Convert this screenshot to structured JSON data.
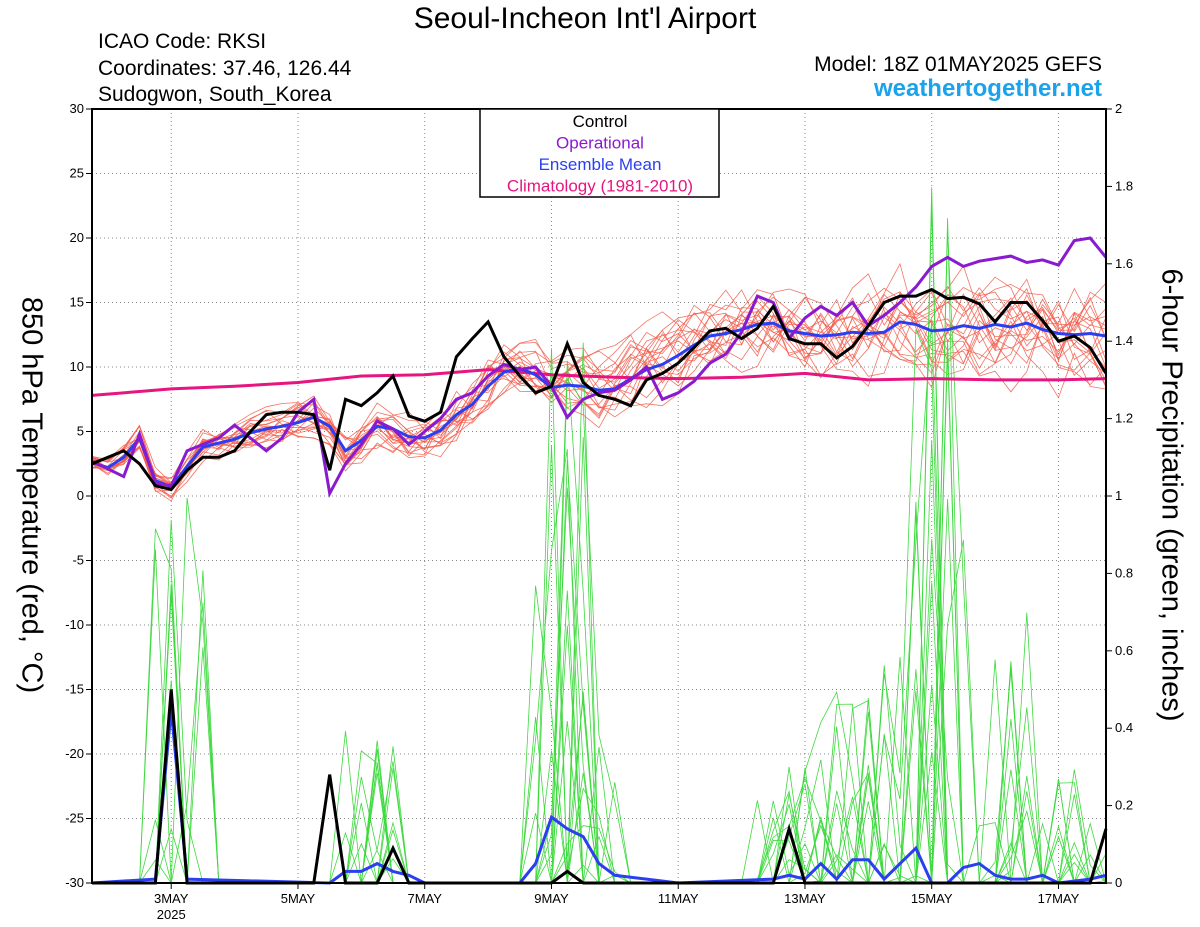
{
  "header": {
    "title": "Seoul-Incheon Int'l Airport",
    "icao": "ICAO Code: RKSI",
    "coords": "Coordinates: 37.46, 126.44",
    "region": "Sudogwon, South_Korea",
    "model": "Model: 18Z 01MAY2025 GEFS",
    "site": "weathertogether.net"
  },
  "colors": {
    "site": "#1aa3ea",
    "control": "#000000",
    "operational": "#8a1ad0",
    "mean": "#2b3ff0",
    "climatology": "#e6157f",
    "members_temp": "#f25a4a",
    "members_precip": "#3ed93e",
    "grid": "#888888"
  },
  "chart_data": {
    "type": "line",
    "title": "Seoul-Incheon Int'l Airport",
    "ylabel_left": "850 hPa Temperature (red, °C)",
    "ylabel_right": "6-hour Precipitation (green, inches)",
    "ylim_left": [
      -30,
      30
    ],
    "ylim_right": [
      0,
      2
    ],
    "yticks_left": [
      "30",
      "25",
      "20",
      "15",
      "10",
      "5",
      "0",
      "-5",
      "-10",
      "-15",
      "-20",
      "-25",
      "-30"
    ],
    "yticks_right": [
      "2",
      "1.8",
      "1.6",
      "1.4",
      "1.2",
      "1",
      "0.8",
      "0.6",
      "0.4",
      "0.2",
      "0"
    ],
    "xlim": [
      1.75,
      17.75
    ],
    "xticks": [
      {
        "x": 3,
        "label": "3MAY"
      },
      {
        "x": 5,
        "label": "5MAY"
      },
      {
        "x": 7,
        "label": "7MAY"
      },
      {
        "x": 9,
        "label": "9MAY"
      },
      {
        "x": 11,
        "label": "11MAY"
      },
      {
        "x": 13,
        "label": "13MAY"
      },
      {
        "x": 15,
        "label": "15MAY"
      },
      {
        "x": 17,
        "label": "17MAY"
      }
    ],
    "x_year_label": "2025",
    "grid": true,
    "legend": {
      "position": "top-center",
      "entries": [
        {
          "name": "Control",
          "color": "#000000"
        },
        {
          "name": "Operational",
          "color": "#8a1ad0"
        },
        {
          "name": "Ensemble Mean",
          "color": "#2b3ff0"
        },
        {
          "name": "Climatology (1981-2010)",
          "color": "#e6157f"
        }
      ]
    },
    "temperature": {
      "control": [
        [
          1.75,
          2.5
        ],
        [
          2.25,
          3.5
        ],
        [
          2.5,
          2.5
        ],
        [
          2.75,
          0.8
        ],
        [
          3,
          0.5
        ],
        [
          3.25,
          2
        ],
        [
          3.5,
          3
        ],
        [
          3.75,
          3
        ],
        [
          4,
          3.5
        ],
        [
          4.25,
          5
        ],
        [
          4.5,
          6.3
        ],
        [
          4.75,
          6.5
        ],
        [
          5,
          6.5
        ],
        [
          5.25,
          6.3
        ],
        [
          5.5,
          2
        ],
        [
          5.75,
          7.5
        ],
        [
          6,
          7
        ],
        [
          6.25,
          8
        ],
        [
          6.5,
          9.3
        ],
        [
          6.75,
          6.2
        ],
        [
          7,
          5.8
        ],
        [
          7.25,
          6.5
        ],
        [
          7.5,
          10.8
        ],
        [
          7.75,
          12.2
        ],
        [
          8,
          13.5
        ],
        [
          8.25,
          10.8
        ],
        [
          8.5,
          9.3
        ],
        [
          8.75,
          8
        ],
        [
          9,
          8.5
        ],
        [
          9.25,
          11.8
        ],
        [
          9.5,
          8.8
        ],
        [
          9.75,
          7.8
        ],
        [
          10,
          7.5
        ],
        [
          10.25,
          7
        ],
        [
          10.5,
          9
        ],
        [
          10.75,
          9.5
        ],
        [
          11,
          10.3
        ],
        [
          11.25,
          11.5
        ],
        [
          11.5,
          12.8
        ],
        [
          11.75,
          13
        ],
        [
          12,
          12.2
        ],
        [
          12.25,
          13
        ],
        [
          12.5,
          14.7
        ],
        [
          12.75,
          12.2
        ],
        [
          13,
          11.8
        ],
        [
          13.25,
          11.8
        ],
        [
          13.5,
          10.7
        ],
        [
          13.75,
          11.6
        ],
        [
          14,
          13.2
        ],
        [
          14.25,
          15
        ],
        [
          14.5,
          15.5
        ],
        [
          14.75,
          15.5
        ],
        [
          15,
          16
        ],
        [
          15.25,
          15.3
        ],
        [
          15.5,
          15.4
        ],
        [
          15.75,
          14.9
        ],
        [
          16,
          13.5
        ],
        [
          16.25,
          15
        ],
        [
          16.5,
          15
        ],
        [
          16.75,
          13.6
        ],
        [
          17,
          12
        ],
        [
          17.25,
          12.4
        ],
        [
          17.5,
          11.5
        ],
        [
          17.75,
          9.5
        ]
      ],
      "operational": [
        [
          1.75,
          2.7
        ],
        [
          2.25,
          1.5
        ],
        [
          2.5,
          4.8
        ],
        [
          2.75,
          1
        ],
        [
          3,
          0.8
        ],
        [
          3.25,
          3.5
        ],
        [
          3.5,
          4
        ],
        [
          3.75,
          4.5
        ],
        [
          4,
          5.5
        ],
        [
          4.25,
          4.5
        ],
        [
          4.5,
          3.5
        ],
        [
          4.75,
          4.5
        ],
        [
          5,
          6.5
        ],
        [
          5.25,
          7.5
        ],
        [
          5.5,
          0.2
        ],
        [
          5.75,
          2.5
        ],
        [
          6,
          4
        ],
        [
          6.25,
          5.8
        ],
        [
          6.5,
          5.2
        ],
        [
          6.75,
          4
        ],
        [
          7,
          5
        ],
        [
          7.25,
          6
        ],
        [
          7.5,
          7.5
        ],
        [
          7.75,
          8
        ],
        [
          8,
          9.3
        ],
        [
          8.25,
          10.2
        ],
        [
          8.5,
          9.8
        ],
        [
          8.75,
          10
        ],
        [
          9,
          8.5
        ],
        [
          9.25,
          6.1
        ],
        [
          9.5,
          7.5
        ],
        [
          9.75,
          8
        ],
        [
          10,
          8.2
        ],
        [
          10.25,
          9
        ],
        [
          10.5,
          10
        ],
        [
          10.75,
          7.5
        ],
        [
          11,
          8
        ],
        [
          11.25,
          8.9
        ],
        [
          11.5,
          10.3
        ],
        [
          11.75,
          11
        ],
        [
          12,
          12.7
        ],
        [
          12.25,
          15.5
        ],
        [
          12.5,
          15
        ],
        [
          12.75,
          12.2
        ],
        [
          13,
          13.8
        ],
        [
          13.25,
          14.7
        ],
        [
          13.5,
          14
        ],
        [
          13.75,
          15
        ],
        [
          14,
          13.2
        ],
        [
          14.25,
          14
        ],
        [
          14.5,
          15
        ],
        [
          14.75,
          16.2
        ],
        [
          15,
          17.8
        ],
        [
          15.25,
          18.5
        ],
        [
          15.5,
          17.8
        ],
        [
          15.75,
          18.2
        ],
        [
          16,
          18.4
        ],
        [
          16.25,
          18.6
        ],
        [
          16.5,
          18.1
        ],
        [
          16.75,
          18.3
        ],
        [
          17,
          17.9
        ],
        [
          17.25,
          19.8
        ],
        [
          17.5,
          20
        ],
        [
          17.75,
          18.5
        ]
      ],
      "mean": [
        [
          1.75,
          2.6
        ],
        [
          2,
          2.2
        ],
        [
          2.25,
          3
        ],
        [
          2.5,
          4.5
        ],
        [
          2.75,
          1.2
        ],
        [
          3,
          0.7
        ],
        [
          3.25,
          2.3
        ],
        [
          3.5,
          3.8
        ],
        [
          3.75,
          4.1
        ],
        [
          4,
          4.4
        ],
        [
          4.25,
          4.9
        ],
        [
          4.5,
          5.2
        ],
        [
          4.75,
          5.4
        ],
        [
          5,
          5.7
        ],
        [
          5.25,
          6.1
        ],
        [
          5.5,
          5.4
        ],
        [
          5.75,
          3.5
        ],
        [
          6,
          4.3
        ],
        [
          6.25,
          5.4
        ],
        [
          6.5,
          5.2
        ],
        [
          6.75,
          4.6
        ],
        [
          7,
          4.5
        ],
        [
          7.25,
          5.1
        ],
        [
          7.5,
          6.3
        ],
        [
          7.75,
          7.1
        ],
        [
          8,
          8.5
        ],
        [
          8.25,
          9.6
        ],
        [
          8.5,
          9.9
        ],
        [
          8.75,
          9.4
        ],
        [
          9,
          8.4
        ],
        [
          9.25,
          8.6
        ],
        [
          9.5,
          8.5
        ],
        [
          9.75,
          8.2
        ],
        [
          10,
          8.3
        ],
        [
          10.25,
          9.1
        ],
        [
          10.5,
          9.8
        ],
        [
          10.75,
          10.2
        ],
        [
          11,
          10.9
        ],
        [
          11.25,
          11.7
        ],
        [
          11.5,
          12.4
        ],
        [
          11.75,
          12.6
        ],
        [
          12,
          12.9
        ],
        [
          12.25,
          13.3
        ],
        [
          12.5,
          13.4
        ],
        [
          12.75,
          12.8
        ],
        [
          13,
          12.6
        ],
        [
          13.25,
          12.4
        ],
        [
          13.5,
          12.5
        ],
        [
          13.75,
          12.7
        ],
        [
          14,
          12.6
        ],
        [
          14.25,
          12.7
        ],
        [
          14.5,
          13.5
        ],
        [
          14.75,
          13.3
        ],
        [
          15,
          12.8
        ],
        [
          15.25,
          12.9
        ],
        [
          15.5,
          13.2
        ],
        [
          15.75,
          13
        ],
        [
          16,
          13.3
        ],
        [
          16.25,
          13.1
        ],
        [
          16.5,
          13.4
        ],
        [
          16.75,
          12.9
        ],
        [
          17,
          12.6
        ],
        [
          17.25,
          12.5
        ],
        [
          17.5,
          12.6
        ],
        [
          17.75,
          12.4
        ]
      ],
      "climatology": [
        [
          1.75,
          7.8
        ],
        [
          2.5,
          8.1
        ],
        [
          3,
          8.3
        ],
        [
          4,
          8.5
        ],
        [
          5,
          8.8
        ],
        [
          6,
          9.3
        ],
        [
          7,
          9.4
        ],
        [
          8,
          9.8
        ],
        [
          9,
          9.4
        ],
        [
          10,
          9.2
        ],
        [
          11,
          9.1
        ],
        [
          12,
          9.2
        ],
        [
          13,
          9.5
        ],
        [
          14,
          9
        ],
        [
          15,
          9.1
        ],
        [
          16,
          9
        ],
        [
          17,
          9
        ],
        [
          17.75,
          9.1
        ]
      ]
    },
    "precipitation": {
      "control": [
        [
          1.75,
          0
        ],
        [
          2.75,
          0
        ],
        [
          3,
          0.5
        ],
        [
          3.25,
          0
        ],
        [
          5.25,
          0
        ],
        [
          5.5,
          0.28
        ],
        [
          5.75,
          0
        ],
        [
          6.25,
          0
        ],
        [
          6.5,
          0.09
        ],
        [
          6.75,
          0
        ],
        [
          9,
          0
        ],
        [
          9.25,
          0.03
        ],
        [
          9.5,
          0
        ],
        [
          12.5,
          0
        ],
        [
          12.75,
          0.14
        ],
        [
          13,
          0
        ],
        [
          17.5,
          0
        ],
        [
          17.75,
          0.14
        ]
      ],
      "mean": [
        [
          1.75,
          0
        ],
        [
          2.75,
          0.01
        ],
        [
          3,
          0.45
        ],
        [
          3.25,
          0.01
        ],
        [
          5.5,
          0
        ],
        [
          5.75,
          0.03
        ],
        [
          6,
          0.03
        ],
        [
          6.25,
          0.05
        ],
        [
          6.5,
          0.03
        ],
        [
          6.75,
          0.02
        ],
        [
          7,
          0
        ],
        [
          8.5,
          0
        ],
        [
          8.75,
          0.05
        ],
        [
          9,
          0.17
        ],
        [
          9.25,
          0.14
        ],
        [
          9.5,
          0.12
        ],
        [
          9.75,
          0.05
        ],
        [
          10,
          0.02
        ],
        [
          10.5,
          0.01
        ],
        [
          11,
          0
        ],
        [
          12.5,
          0.01
        ],
        [
          12.75,
          0.02
        ],
        [
          13,
          0.01
        ],
        [
          13.25,
          0.05
        ],
        [
          13.5,
          0.01
        ],
        [
          13.75,
          0.06
        ],
        [
          14,
          0.06
        ],
        [
          14.25,
          0.01
        ],
        [
          14.5,
          0.05
        ],
        [
          14.75,
          0.09
        ],
        [
          15,
          0
        ],
        [
          15.25,
          0
        ],
        [
          15.5,
          0.04
        ],
        [
          15.75,
          0.05
        ],
        [
          16,
          0.02
        ],
        [
          16.25,
          0.01
        ],
        [
          16.5,
          0.01
        ],
        [
          16.75,
          0.02
        ],
        [
          17,
          0
        ],
        [
          17.5,
          0.01
        ],
        [
          17.75,
          0.02
        ]
      ]
    }
  }
}
